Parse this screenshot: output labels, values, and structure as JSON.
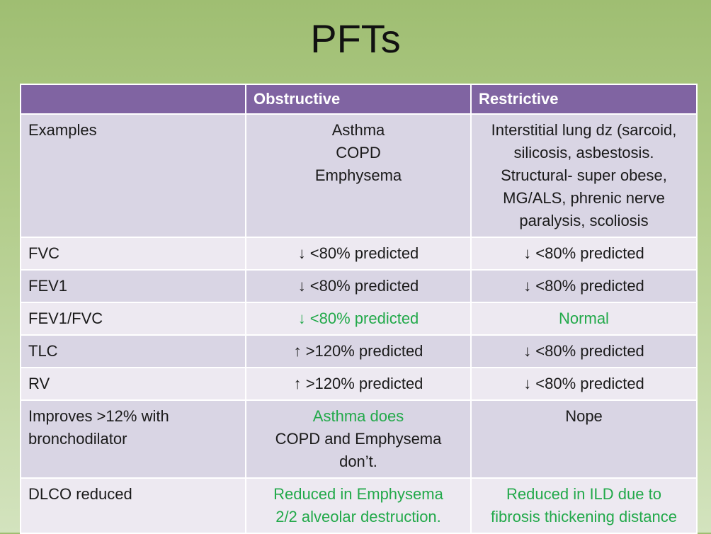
{
  "title": "PFTs",
  "headers": [
    "",
    "Obstructive",
    "Restrictive"
  ],
  "rows": [
    {
      "label": [
        "Examples"
      ],
      "obstructive": [
        "Asthma",
        "COPD",
        "Emphysema"
      ],
      "restrictive": [
        "Interstitial lung dz (sarcoid,",
        "silicosis, asbestosis.",
        "Structural- super obese,",
        "MG/ALS, phrenic nerve",
        "paralysis, scoliosis"
      ]
    },
    {
      "label": [
        "FVC"
      ],
      "obstructive": [
        "↓ <80% predicted"
      ],
      "restrictive": [
        "↓ <80% predicted"
      ]
    },
    {
      "label": [
        "FEV1"
      ],
      "obstructive": [
        "↓ <80% predicted"
      ],
      "restrictive": [
        "↓ <80% predicted"
      ]
    },
    {
      "label": [
        "FEV1/FVC"
      ],
      "obstructive": [
        "↓ <80% predicted"
      ],
      "restrictive": [
        "Normal"
      ]
    },
    {
      "label": [
        "TLC"
      ],
      "obstructive": [
        "↑ >120% predicted"
      ],
      "restrictive": [
        "↓ <80% predicted"
      ]
    },
    {
      "label": [
        "RV"
      ],
      "obstructive": [
        "↑ >120% predicted"
      ],
      "restrictive": [
        "↓ <80% predicted"
      ]
    },
    {
      "label": [
        "Improves >12% with",
        "bronchodilator"
      ],
      "obstructive": [
        "Asthma does",
        "COPD and Emphysema",
        "don’t."
      ],
      "restrictive": [
        "Nope"
      ]
    },
    {
      "label": [
        "DLCO reduced"
      ],
      "obstructive": [
        "Reduced in Emphysema",
        "2/2 alveolar destruction."
      ],
      "restrictive": [
        "Reduced in ILD due to",
        "fibrosis thickening distance"
      ]
    }
  ],
  "colors": {
    "header": "#8064a2",
    "row_dark": "#d9d5e4",
    "row_light": "#ede9f1",
    "highlight": "#22a94a"
  }
}
